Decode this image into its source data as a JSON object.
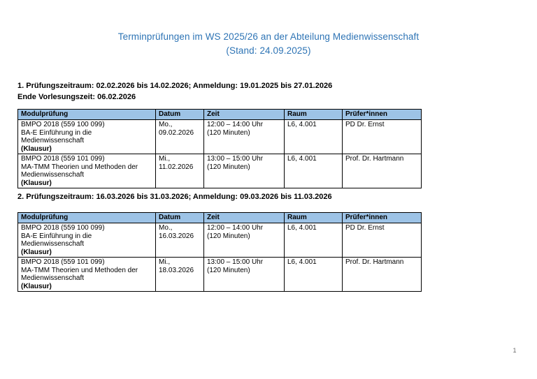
{
  "page": {
    "title_line1": "Terminprüfungen im WS 2025/26 an der Abteilung Medienwissenschaft",
    "title_line2": "(Stand: 24.09.2025)",
    "page_number": "1",
    "accent_colors": {
      "title_blue": "#2E74B5",
      "table_header_bg": "#9DC3E6"
    }
  },
  "sections": [
    {
      "heading_line1": "1. Prüfungszeitraum: 02.02.2026 bis 14.02.2026; Anmeldung: 19.01.2025 bis 27.01.2026",
      "heading_line2": "Ende Vorlesungszeit: 06.02.2026",
      "table": {
        "headers": [
          "Modulprüfung",
          "Datum",
          "Zeit",
          "Raum",
          "Prüfer*innen"
        ],
        "rows": [
          {
            "modulpruefung": "BMPO 2018 (559 100 099)\nBA-E Einführung in die\nMedienwissenschaft",
            "modulpruefung_note": "(Klausur)",
            "datum": "Mo.,\n09.02.2026",
            "zeit": "12:00 – 14:00 Uhr\n(120 Minuten)",
            "raum": "L6, 4.001",
            "pruefer": "PD Dr. Ernst"
          },
          {
            "modulpruefung": "BMPO 2018 (559 101 099)\nMA-TMM Theorien und Methoden der\nMedienwissenschaft",
            "modulpruefung_note": "(Klausur)",
            "datum": "Mi.,\n11.02.2026",
            "zeit": "13:00 – 15:00 Uhr\n(120 Minuten)",
            "raum": "L6, 4.001",
            "pruefer": "Prof. Dr. Hartmann"
          }
        ]
      }
    },
    {
      "heading_line1": "2. Prüfungszeitraum: 16.03.2026 bis 31.03.2026; Anmeldung: 09.03.2026 bis 11.03.2026",
      "table": {
        "headers": [
          "Modulprüfung",
          "Datum",
          "Zeit",
          "Raum",
          "Prüfer*innen"
        ],
        "rows": [
          {
            "modulpruefung": "BMPO 2018 (559 100 099)\nBA-E Einführung in die\nMedienwissenschaft",
            "modulpruefung_note": "(Klausur)",
            "datum": "Mo.,\n16.03.2026",
            "zeit": "12:00 – 14:00 Uhr\n(120 Minuten)",
            "raum": "L6, 4.001",
            "pruefer": "PD Dr. Ernst"
          },
          {
            "modulpruefung": "BMPO 2018 (559 101 099)\nMA-TMM Theorien und Methoden der\nMedienwissenschaft",
            "modulpruefung_note": "(Klausur)",
            "datum": "Mi.,\n18.03.2026",
            "zeit": "13:00 – 15:00 Uhr\n(120 Minuten)",
            "raum": "L6, 4.001",
            "pruefer": "Prof. Dr. Hartmann"
          }
        ]
      }
    }
  ]
}
